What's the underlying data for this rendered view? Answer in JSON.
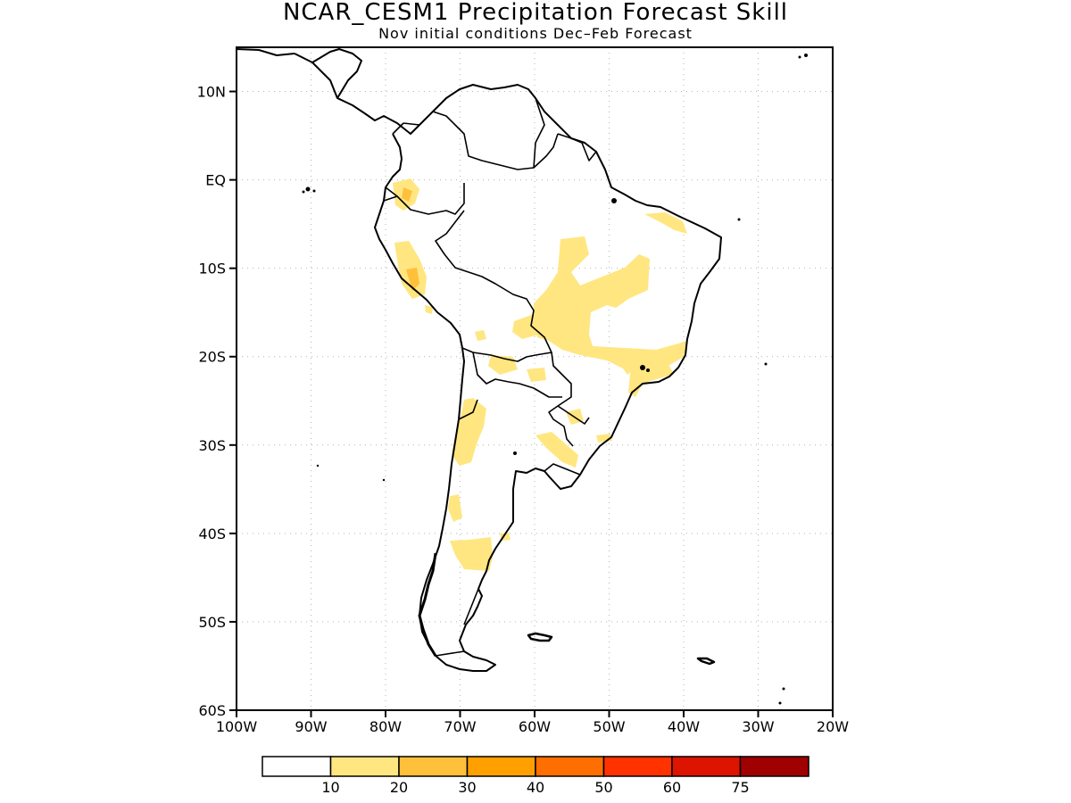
{
  "header": {
    "title": "NCAR_CESM1 Precipitation Forecast Skill",
    "subtitle": "Nov initial conditions   Dec–Feb Forecast"
  },
  "map": {
    "region": "South America",
    "lon_range": [
      -100,
      -20
    ],
    "lat_range": [
      -60,
      15
    ],
    "lat_ticks": [
      {
        "value": 10,
        "label": "10N"
      },
      {
        "value": 0,
        "label": "EQ"
      },
      {
        "value": -10,
        "label": "10S"
      },
      {
        "value": -20,
        "label": "20S"
      },
      {
        "value": -30,
        "label": "30S"
      },
      {
        "value": -40,
        "label": "40S"
      },
      {
        "value": -50,
        "label": "50S"
      },
      {
        "value": -60,
        "label": "60S"
      }
    ],
    "lon_ticks": [
      {
        "value": -100,
        "label": "100W"
      },
      {
        "value": -90,
        "label": "90W"
      },
      {
        "value": -80,
        "label": "80W"
      },
      {
        "value": -70,
        "label": "70W"
      },
      {
        "value": -60,
        "label": "60W"
      },
      {
        "value": -50,
        "label": "50W"
      },
      {
        "value": -40,
        "label": "40W"
      },
      {
        "value": -30,
        "label": "30W"
      },
      {
        "value": -20,
        "label": "20W"
      }
    ],
    "grid": "dotted"
  },
  "colorbar": {
    "colors": [
      "#ffffff",
      "#ffe680",
      "#ffc03c",
      "#ffa000",
      "#ff6e00",
      "#ff3200",
      "#dc1400",
      "#a00000"
    ],
    "labels": [
      "10",
      "20",
      "30",
      "40",
      "50",
      "60",
      "75"
    ]
  }
}
